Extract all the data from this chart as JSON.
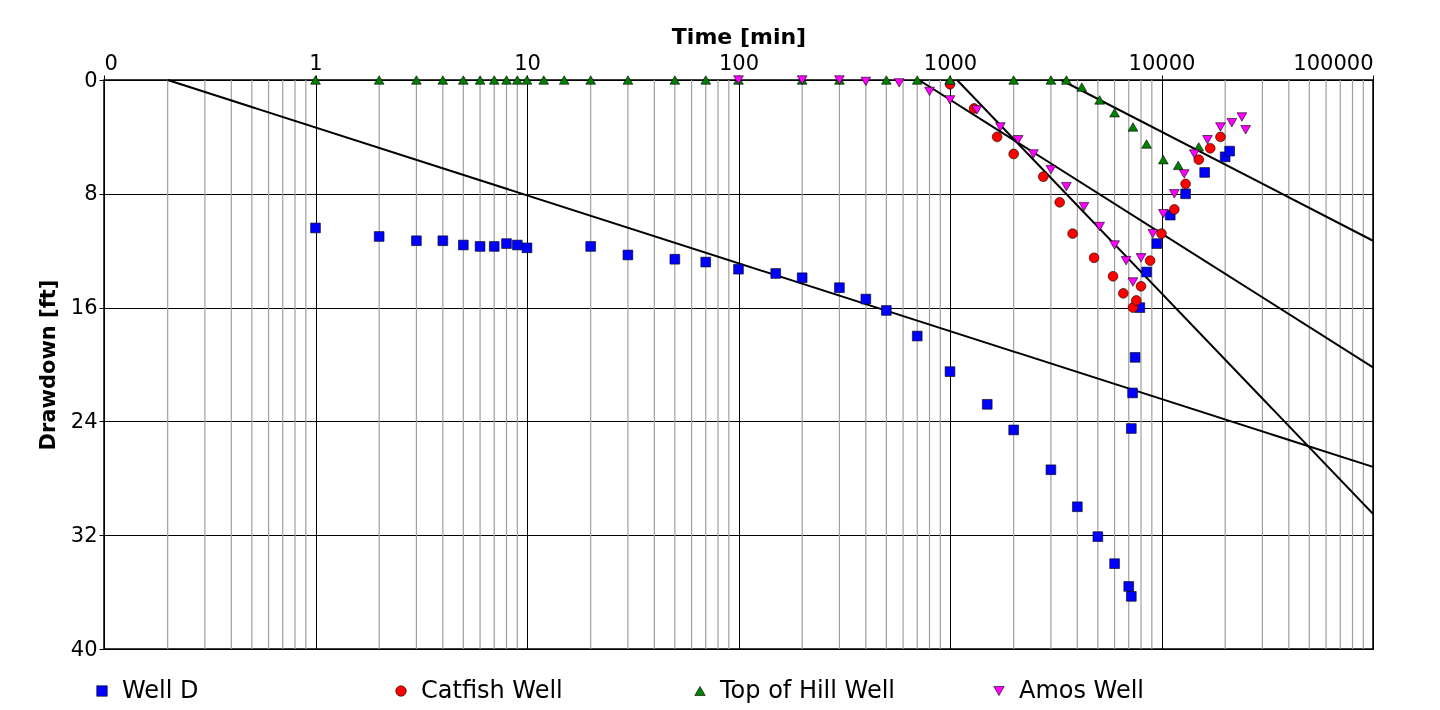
{
  "chart_data": {
    "type": "scatter",
    "xlabel": "Time [min]",
    "ylabel": "Drawdown [ft]",
    "log": "x",
    "grid": true,
    "legend": "bottom",
    "xlim": [
      0.1,
      100000
    ],
    "xticks": [
      {
        "value": 0.1,
        "label": "0"
      },
      1,
      10,
      100,
      1000,
      10000,
      100000
    ],
    "ylim": [
      40,
      0
    ],
    "yticks": [
      0,
      8,
      16,
      24,
      32,
      40
    ],
    "series": [
      {
        "name": "Well D",
        "marker": "square",
        "color": "#0000ff",
        "x": [
          1,
          2,
          3,
          4,
          5,
          6,
          7,
          8,
          9,
          10,
          20,
          30,
          50,
          70,
          100,
          150,
          200,
          300,
          400,
          500,
          700,
          1000,
          1500,
          2000,
          3000,
          4000,
          5000,
          6000,
          7000,
          7200,
          7200,
          7300,
          7500,
          7900,
          8500,
          9500,
          11000,
          13000,
          16000,
          20000,
          21000
        ],
        "values": [
          10.4,
          11.0,
          11.3,
          11.3,
          11.6,
          11.7,
          11.7,
          11.5,
          11.6,
          11.8,
          11.7,
          12.3,
          12.6,
          12.8,
          13.3,
          13.6,
          13.9,
          14.6,
          15.4,
          16.2,
          18.0,
          20.5,
          22.8,
          24.6,
          27.4,
          30.0,
          32.1,
          34.0,
          35.6,
          36.3,
          24.5,
          22.0,
          19.5,
          16.0,
          13.5,
          11.5,
          9.5,
          8.0,
          6.5,
          5.4,
          5.0
        ]
      },
      {
        "name": "Catfish Well",
        "marker": "circle",
        "color": "#ff0000",
        "x": [
          1000,
          1300,
          1670,
          2000,
          2760,
          3300,
          3800,
          4800,
          5900,
          6600,
          7330,
          7600,
          8000,
          8830,
          10000,
          11500,
          13000,
          15000,
          17000,
          19000
        ],
        "values": [
          0.3,
          2.0,
          4.0,
          5.2,
          6.8,
          8.6,
          10.8,
          12.5,
          13.8,
          15.0,
          16.0,
          15.5,
          14.5,
          12.7,
          10.8,
          9.1,
          7.3,
          5.6,
          4.8,
          4.0
        ]
      },
      {
        "name": "Top of Hill Well",
        "marker": "triangle",
        "color": "#008000",
        "x": [
          1,
          2,
          3,
          4,
          5,
          6,
          7,
          8,
          9,
          10,
          12,
          15,
          20,
          30,
          50,
          70,
          100,
          200,
          300,
          500,
          700,
          1000,
          2000,
          3000,
          3550,
          4200,
          5100,
          6000,
          7330,
          8500,
          10200,
          12000,
          15000
        ],
        "values": [
          0,
          0,
          0,
          0,
          0,
          0,
          0,
          0,
          0,
          0,
          0,
          0,
          0,
          0,
          0,
          0,
          0,
          0,
          0,
          0,
          0,
          0,
          0,
          0,
          0,
          0.5,
          1.4,
          2.3,
          3.3,
          4.5,
          5.6,
          6.0,
          4.7
        ]
      },
      {
        "name": "Amos Well",
        "marker": "triangle-down",
        "color": "#ff00ff",
        "x": [
          100,
          200,
          300,
          400,
          575,
          800,
          1000,
          1340,
          1730,
          2100,
          2480,
          3000,
          3550,
          4300,
          5100,
          6000,
          6800,
          7330,
          8000,
          9100,
          10200,
          11500,
          12800,
          14300,
          16500,
          19000,
          21500,
          24000,
          25000
        ],
        "values": [
          0,
          0,
          0,
          0.1,
          0.2,
          0.8,
          1.4,
          2.1,
          3.3,
          4.2,
          5.2,
          6.3,
          7.5,
          8.9,
          10.3,
          11.6,
          12.7,
          14.2,
          12.5,
          10.8,
          9.4,
          8.0,
          6.6,
          5.2,
          4.2,
          3.3,
          3.0,
          2.6,
          3.5
        ]
      },
      {
        "type": "line",
        "color": "#000000",
        "x": [
          0.2,
          100000
        ],
        "values": [
          0,
          27.2
        ]
      },
      {
        "type": "line",
        "color": "#000000",
        "x": [
          1080,
          100000
        ],
        "values": [
          0,
          30.5
        ]
      },
      {
        "type": "line",
        "color": "#000000",
        "x": [
          713,
          100000
        ],
        "values": [
          0,
          20.2
        ]
      },
      {
        "type": "line",
        "color": "#000000",
        "x": [
          3350,
          100000
        ],
        "values": [
          0,
          11.3
        ]
      }
    ]
  }
}
